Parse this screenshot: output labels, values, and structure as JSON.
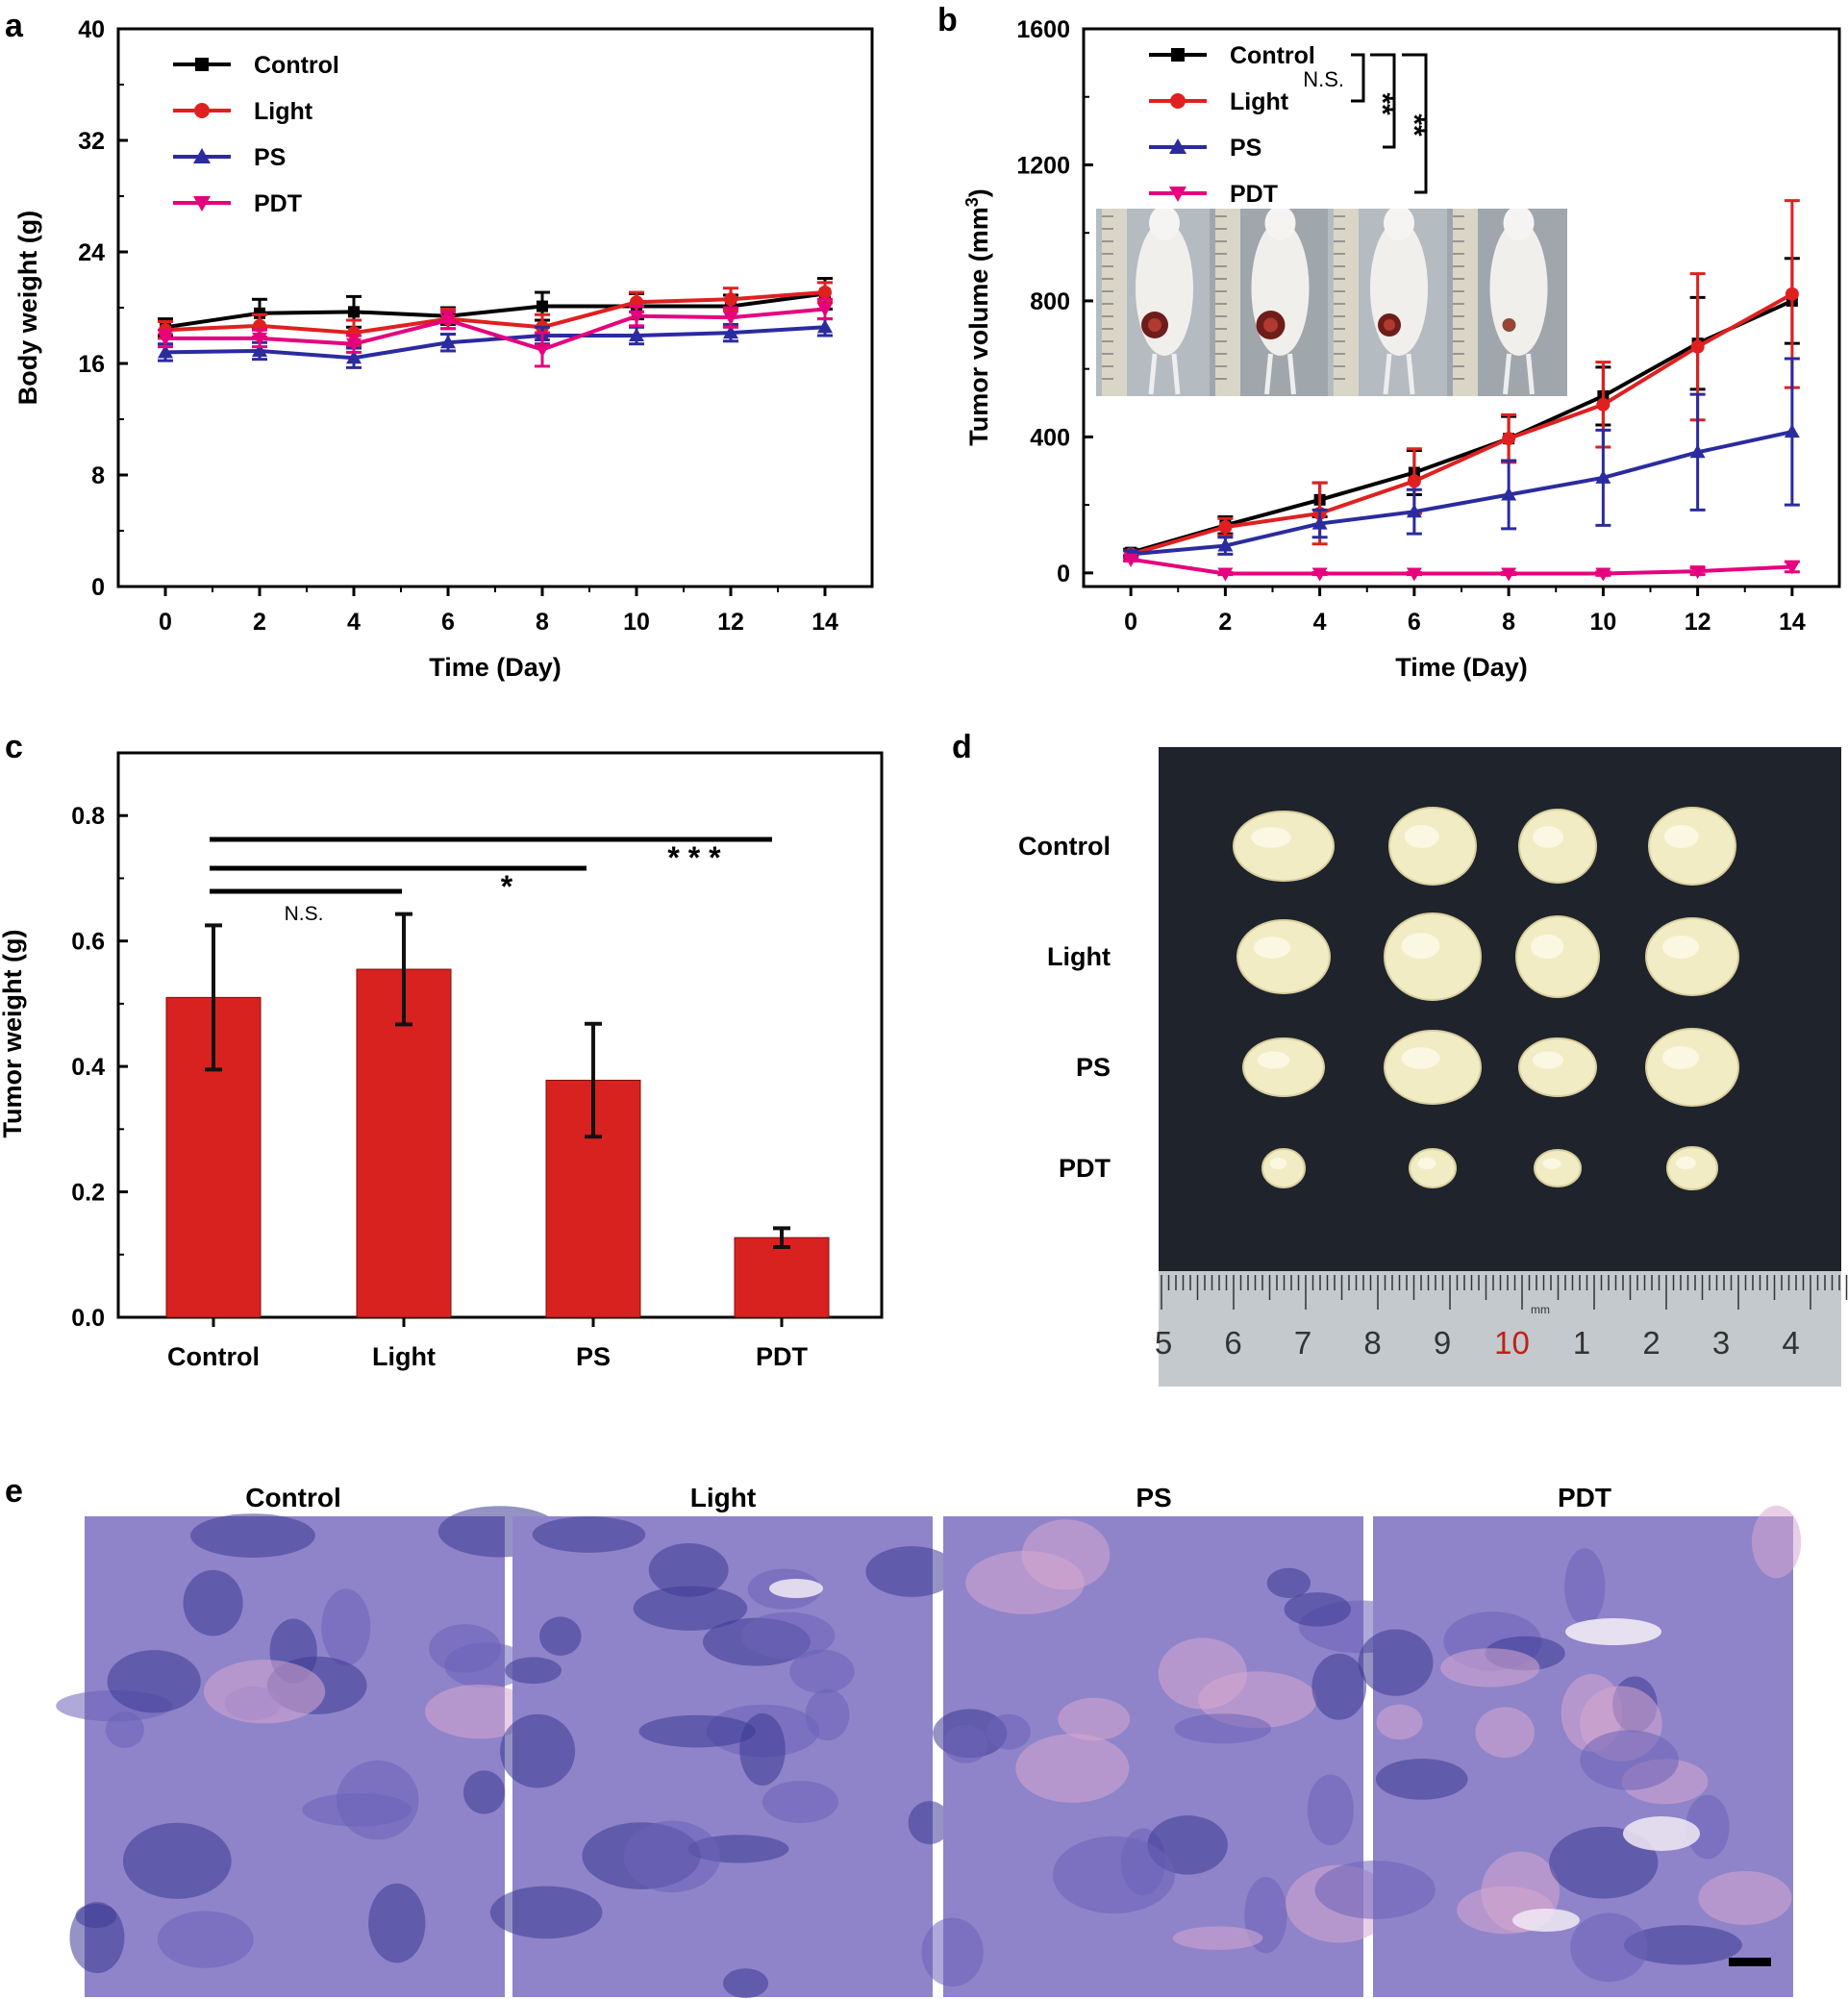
{
  "colors": {
    "control": "#000000",
    "light": "#e02020",
    "ps": "#2b2ba0",
    "pdt": "#e6007e",
    "bar": "#d8221f",
    "photo_bg": "#1f232c",
    "he_base": "#8f84c9",
    "he_dark": "#3d3a94",
    "he_pink": "#d7a8cf"
  },
  "panel_labels": {
    "a": "a",
    "b": "b",
    "c": "c",
    "d": "d",
    "e": "e"
  },
  "chart_data": [
    {
      "id": "a",
      "type": "line",
      "title": "",
      "xlabel": "Time (Day)",
      "ylabel": "Body weight (g)",
      "xlim": [
        -1,
        15
      ],
      "ylim": [
        0,
        40
      ],
      "xticks": [
        0,
        2,
        4,
        6,
        8,
        10,
        12,
        14
      ],
      "yticks": [
        0,
        8,
        16,
        24,
        32,
        40
      ],
      "legend": "top-left",
      "x": [
        0,
        2,
        4,
        6,
        8,
        10,
        12,
        14
      ],
      "series": [
        {
          "name": "Control",
          "key": "control",
          "marker": "square",
          "values": [
            18.6,
            19.6,
            19.7,
            19.4,
            20.1,
            20.1,
            20.1,
            21.0
          ],
          "err": [
            0.6,
            1.0,
            1.1,
            0.6,
            1.0,
            0.9,
            0.8,
            1.1
          ]
        },
        {
          "name": "Light",
          "key": "light",
          "marker": "circle",
          "values": [
            18.4,
            18.7,
            18.2,
            19.2,
            18.6,
            20.4,
            20.6,
            21.1
          ],
          "err": [
            0.6,
            0.8,
            0.9,
            0.7,
            0.9,
            0.7,
            0.8,
            0.7
          ]
        },
        {
          "name": "PS",
          "key": "ps",
          "marker": "triangle-up",
          "values": [
            16.8,
            16.9,
            16.4,
            17.5,
            18.0,
            18.0,
            18.2,
            18.6
          ],
          "err": [
            0.6,
            0.6,
            0.7,
            0.6,
            0.6,
            0.6,
            0.6,
            0.6
          ]
        },
        {
          "name": "PDT",
          "key": "pdt",
          "marker": "triangle-down",
          "values": [
            17.8,
            17.8,
            17.4,
            19.1,
            17.0,
            19.4,
            19.3,
            19.9
          ],
          "err": [
            0.6,
            0.6,
            0.6,
            0.6,
            1.2,
            0.7,
            0.7,
            0.7
          ]
        }
      ]
    },
    {
      "id": "b",
      "type": "line",
      "title": "",
      "xlabel": "Time (Day)",
      "ylabel": "Tumor volume (mm",
      "ylabel_sup": "3",
      "ylabel_close": ")",
      "xlim": [
        -1,
        15
      ],
      "ylim": [
        -40,
        1600
      ],
      "xticks": [
        0,
        2,
        4,
        6,
        8,
        10,
        12,
        14
      ],
      "yticks": [
        0,
        400,
        800,
        1200,
        1600
      ],
      "legend": "top-left",
      "x": [
        0,
        2,
        4,
        6,
        8,
        10,
        12,
        14
      ],
      "series": [
        {
          "name": "Control",
          "key": "control",
          "marker": "square",
          "values": [
            60,
            140,
            215,
            295,
            395,
            520,
            675,
            800
          ],
          "err": [
            10,
            25,
            50,
            65,
            65,
            85,
            135,
            125
          ]
        },
        {
          "name": "Light",
          "key": "light",
          "marker": "circle",
          "values": [
            55,
            135,
            175,
            270,
            395,
            495,
            665,
            820
          ],
          "err": [
            10,
            25,
            90,
            95,
            70,
            125,
            215,
            275
          ]
        },
        {
          "name": "PS",
          "key": "ps",
          "marker": "triangle-up",
          "values": [
            55,
            80,
            145,
            180,
            230,
            280,
            355,
            415
          ],
          "err": [
            10,
            25,
            40,
            65,
            100,
            140,
            170,
            215
          ]
        },
        {
          "name": "PDT",
          "key": "pdt",
          "marker": "triangle-down",
          "values": [
            40,
            -2,
            -2,
            -2,
            -2,
            -2,
            5,
            18
          ],
          "err": [
            5,
            3,
            3,
            3,
            3,
            5,
            10,
            15
          ]
        }
      ],
      "annotations": [
        "N.S.",
        "**",
        "**"
      ],
      "inset": "mouse photographs"
    },
    {
      "id": "c",
      "type": "bar",
      "title": "",
      "xlabel": "",
      "ylabel": "Tumor weight (g)",
      "ylim": [
        0,
        0.9
      ],
      "yticks": [
        "0.0",
        "0.2",
        "0.4",
        "0.6",
        "0.8"
      ],
      "categories": [
        "Control",
        "Light",
        "PS",
        "PDT"
      ],
      "values": [
        0.51,
        0.555,
        0.378,
        0.127
      ],
      "err": [
        0.115,
        0.088,
        0.09,
        0.015
      ],
      "annotations": [
        "N.S.",
        "*",
        "* * *"
      ]
    }
  ],
  "panel_d": {
    "row_labels": [
      "Control",
      "Light",
      "PS",
      "PDT"
    ],
    "ruler_numbers": [
      "5",
      "6",
      "7",
      "8",
      "9",
      "10",
      "1",
      "2",
      "3",
      "4"
    ],
    "ruler_unit": "mm"
  },
  "panel_e": {
    "titles": [
      "Control",
      "Light",
      "PS",
      "PDT"
    ]
  }
}
